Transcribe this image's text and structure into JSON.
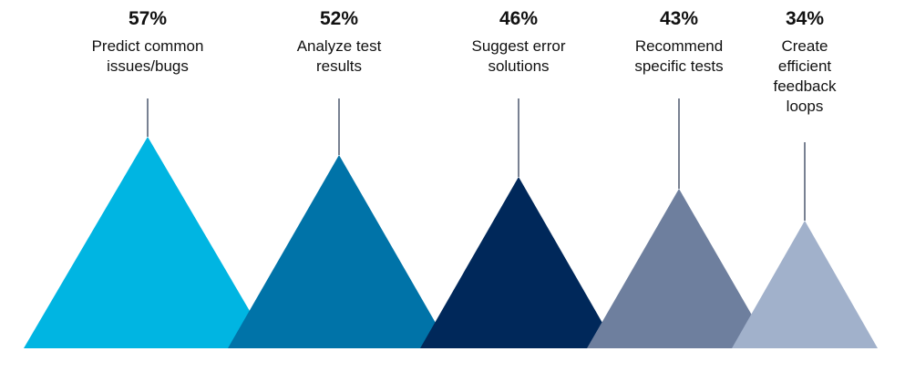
{
  "chart_data": {
    "type": "bar",
    "categories": [
      "Predict common issues/bugs",
      "Analyze test results",
      "Suggest error solutions",
      "Recommend specific tests",
      "Create efficient feedback loops"
    ],
    "value_labels": [
      "57%",
      "52%",
      "46%",
      "43%",
      "34%"
    ],
    "values": [
      57,
      52,
      46,
      43,
      34
    ],
    "label_lines": [
      [
        "Predict common",
        "issues/bugs"
      ],
      [
        "Analyze test",
        "results"
      ],
      [
        "Suggest error",
        "solutions"
      ],
      [
        "Recommend",
        "specific tests"
      ],
      [
        "Create",
        "efficient",
        "feedback",
        "loops"
      ]
    ],
    "colors": [
      "#00b5e2",
      "#0073a8",
      "#00285a",
      "#6e7f9e",
      "#a1b1cb"
    ],
    "title": "",
    "xlabel": "",
    "ylabel": "",
    "ylim": [
      0,
      100
    ],
    "grid": false,
    "legend": "none"
  }
}
